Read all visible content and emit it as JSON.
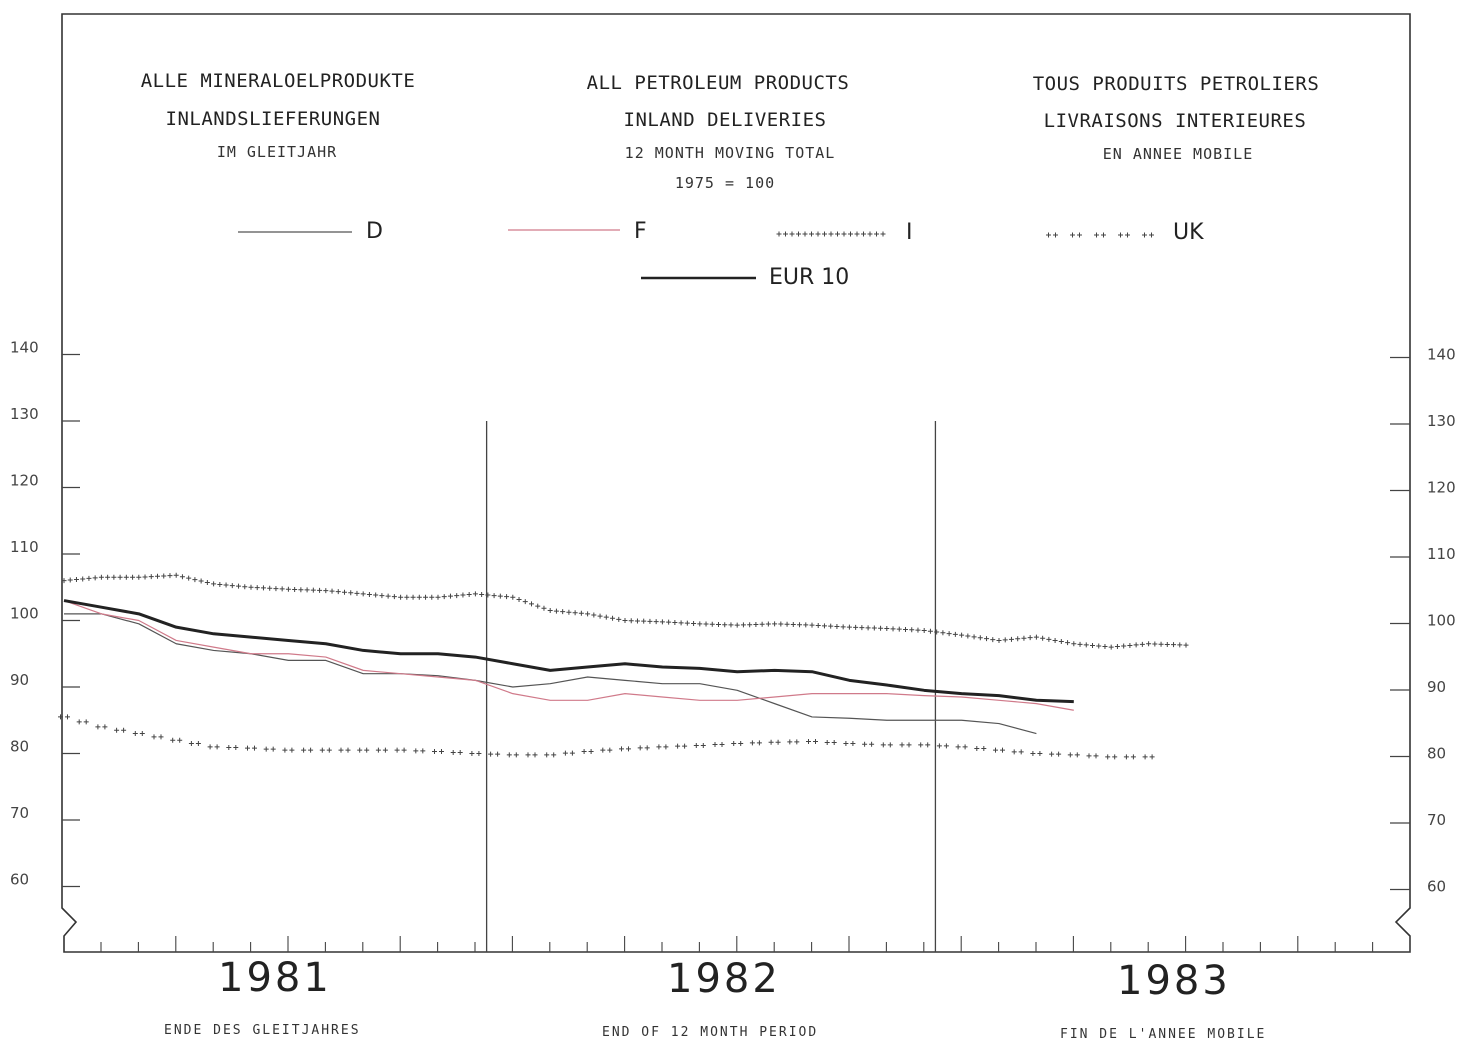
{
  "titles": {
    "de": {
      "line1": "ALLE MINERALOELPRODUKTE",
      "line2": "INLANDSLIEFERUNGEN",
      "line3": "IM GLEITJAHR"
    },
    "en": {
      "line1": "ALL PETROLEUM PRODUCTS",
      "line2": "INLAND DELIVERIES",
      "line3": "12 MONTH MOVING TOTAL",
      "line4": "1975 = 100"
    },
    "fr": {
      "line1": "TOUS PRODUITS PETROLIERS",
      "line2": "LIVRAISONS INTERIEURES",
      "line3": "EN ANNEE MOBILE"
    }
  },
  "footer": {
    "de": "ENDE DES GLEITJAHRES",
    "en": "END OF 12 MONTH PERIOD",
    "fr": "FIN DE L'ANNEE MOBILE"
  },
  "colors": {
    "D": "#555555",
    "F": "#d07a8a",
    "I": "#444444",
    "UK": "#444444",
    "EUR 10": "#222222"
  },
  "chart_data": {
    "type": "line",
    "x_unit": "month (end of 12 month period)",
    "x": [
      "1981-01",
      "1981-02",
      "1981-03",
      "1981-04",
      "1981-05",
      "1981-06",
      "1981-07",
      "1981-08",
      "1981-09",
      "1981-10",
      "1981-11",
      "1981-12",
      "1982-01",
      "1982-02",
      "1982-03",
      "1982-04",
      "1982-05",
      "1982-06",
      "1982-07",
      "1982-08",
      "1982-09",
      "1982-10",
      "1982-11",
      "1982-12",
      "1983-01",
      "1983-02",
      "1983-03",
      "1983-04",
      "1983-05",
      "1983-06",
      "1983-07",
      "1983-08",
      "1983-09",
      "1983-10",
      "1983-11",
      "1983-12"
    ],
    "year_labels": [
      "1981",
      "1982",
      "1983"
    ],
    "ylim": [
      50,
      145
    ],
    "yticks": [
      60,
      70,
      80,
      90,
      100,
      110,
      120,
      130,
      140
    ],
    "grid": false,
    "legend": "top",
    "series": [
      {
        "name": "D",
        "style": "thin",
        "values": [
          101,
          101,
          99.5,
          96.5,
          95.5,
          95,
          94,
          94,
          92,
          92,
          91.7,
          91,
          90,
          90.5,
          91.5,
          91,
          90.5,
          90.5,
          89.5,
          87.5,
          85.5,
          85.3,
          85,
          85,
          85,
          84.5,
          83,
          null,
          null,
          null,
          null,
          null,
          null,
          null,
          null,
          null
        ]
      },
      {
        "name": "F",
        "style": "thin",
        "values": [
          103,
          101,
          100,
          97,
          96,
          95,
          95,
          94.5,
          92.5,
          92,
          91.5,
          91,
          89,
          88,
          88,
          89,
          88.5,
          88,
          88,
          88.5,
          89,
          89,
          89,
          88.7,
          88.5,
          88,
          87.5,
          86.5,
          null,
          null,
          null,
          null,
          null,
          null,
          null,
          null
        ]
      },
      {
        "name": "I",
        "style": "dotted",
        "values": [
          106,
          106.5,
          106.5,
          106.8,
          105.5,
          105,
          104.7,
          104.5,
          104,
          103.5,
          103.5,
          104,
          103.5,
          101.5,
          101,
          100,
          99.8,
          99.5,
          99.3,
          99.5,
          99.3,
          99,
          98.8,
          98.5,
          97.8,
          97,
          97.5,
          96.5,
          96,
          96.5,
          96.3,
          null,
          null,
          null,
          null,
          null
        ]
      },
      {
        "name": "UK",
        "style": "crossed",
        "values": [
          85.5,
          84,
          83,
          82,
          81,
          80.8,
          80.5,
          80.5,
          80.5,
          80.5,
          80.3,
          80,
          79.8,
          79.8,
          80.3,
          80.7,
          81,
          81.2,
          81.5,
          81.7,
          81.8,
          81.5,
          81.3,
          81.3,
          81,
          80.5,
          80,
          79.8,
          79.5,
          79.5,
          null,
          null,
          null,
          null,
          null,
          null
        ]
      },
      {
        "name": "EUR 10",
        "style": "bold",
        "values": [
          103,
          102,
          101,
          99,
          98,
          97.5,
          97,
          96.5,
          95.5,
          95,
          95,
          94.5,
          93.5,
          92.5,
          93,
          93.5,
          93,
          92.8,
          92.3,
          92.5,
          92.3,
          91,
          90.3,
          89.5,
          89,
          88.7,
          88,
          87.8,
          null,
          null,
          null,
          null,
          null,
          null,
          null,
          null
        ]
      }
    ]
  }
}
